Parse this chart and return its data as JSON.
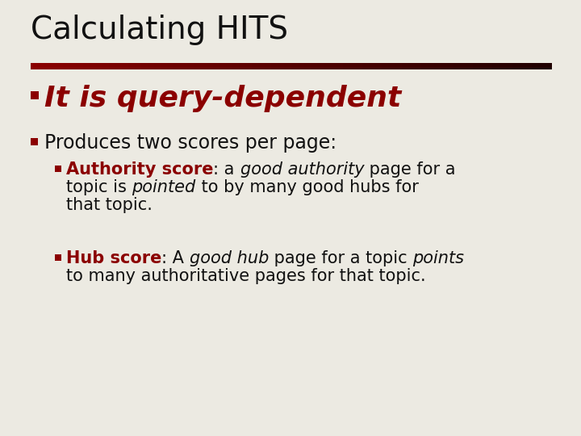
{
  "background_color": "#ECEAE2",
  "title": "Calculating HITS",
  "title_fontsize": 28,
  "title_color": "#111111",
  "bullet_color": "#8B0000",
  "bullet1_text": "It is query-dependent",
  "bullet1_color": "#8B0000",
  "bullet1_fontsize": 26,
  "bullet2_text": "Produces two scores per page:",
  "bullet2_color": "#111111",
  "bullet2_fontsize": 17,
  "body_fontsize": 15,
  "body_color": "#111111",
  "authority_label_color": "#8B0000",
  "hub_label_color": "#8B0000"
}
